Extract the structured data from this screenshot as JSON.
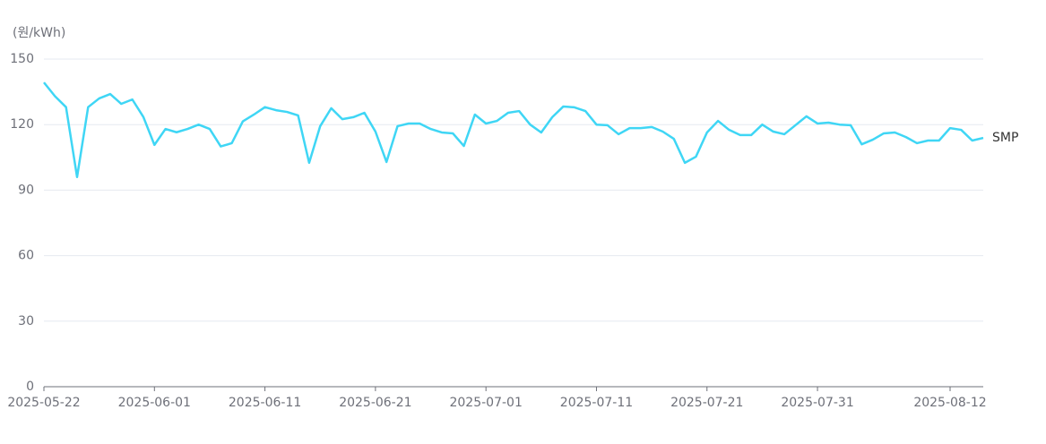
{
  "chart_data": {
    "type": "line",
    "y_axis_label": "(원/kWh)",
    "x": [
      "2025-05-22",
      "2025-05-23",
      "2025-05-24",
      "2025-05-25",
      "2025-05-26",
      "2025-05-27",
      "2025-05-28",
      "2025-05-29",
      "2025-05-30",
      "2025-05-31",
      "2025-06-01",
      "2025-06-02",
      "2025-06-03",
      "2025-06-04",
      "2025-06-05",
      "2025-06-06",
      "2025-06-07",
      "2025-06-08",
      "2025-06-09",
      "2025-06-10",
      "2025-06-11",
      "2025-06-12",
      "2025-06-13",
      "2025-06-14",
      "2025-06-15",
      "2025-06-16",
      "2025-06-17",
      "2025-06-18",
      "2025-06-19",
      "2025-06-20",
      "2025-06-21",
      "2025-06-22",
      "2025-06-23",
      "2025-06-24",
      "2025-06-25",
      "2025-06-26",
      "2025-06-27",
      "2025-06-28",
      "2025-06-29",
      "2025-06-30",
      "2025-07-01",
      "2025-07-02",
      "2025-07-03",
      "2025-07-04",
      "2025-07-05",
      "2025-07-06",
      "2025-07-07",
      "2025-07-08",
      "2025-07-09",
      "2025-07-10",
      "2025-07-11",
      "2025-07-12",
      "2025-07-13",
      "2025-07-14",
      "2025-07-15",
      "2025-07-16",
      "2025-07-17",
      "2025-07-18",
      "2025-07-19",
      "2025-07-20",
      "2025-07-21",
      "2025-07-22",
      "2025-07-23",
      "2025-07-24",
      "2025-07-25",
      "2025-07-26",
      "2025-07-27",
      "2025-07-28",
      "2025-07-29",
      "2025-07-30",
      "2025-07-31",
      "2025-08-01",
      "2025-08-02",
      "2025-08-03",
      "2025-08-04",
      "2025-08-05",
      "2025-08-06",
      "2025-08-07",
      "2025-08-08",
      "2025-08-09",
      "2025-08-10",
      "2025-08-11",
      "2025-08-12",
      "2025-08-13",
      "2025-08-14",
      "2025-08-15"
    ],
    "series": [
      {
        "name": "SMP",
        "color": "#3fd6f5",
        "values": [
          139.3,
          133,
          128,
          96,
          128,
          132,
          134,
          129.5,
          131.5,
          123.5,
          110.7,
          118,
          116.5,
          118,
          120,
          118,
          110,
          111.5,
          121.5,
          124.6,
          128,
          126.6,
          125.8,
          124.2,
          102.5,
          119.3,
          127.5,
          122.5,
          123.4,
          125.4,
          116.8,
          102.9,
          119.3,
          120.5,
          120.5,
          118,
          116.4,
          116,
          110.2,
          124.6,
          120.5,
          121.7,
          125.4,
          126.2,
          120,
          116.4,
          123.4,
          128.3,
          127.9,
          126.2,
          120,
          119.7,
          115.6,
          118.4,
          118.4,
          118.9,
          116.8,
          113.5,
          102.5,
          105.3,
          116.4,
          121.7,
          117.6,
          115.2,
          115.2,
          120,
          116.8,
          115.6,
          119.7,
          123.8,
          120.5,
          120.9,
          120,
          119.7,
          111,
          113.1,
          116,
          116.4,
          114.3,
          111.5,
          112.7,
          112.7,
          118.4,
          117.6,
          112.7,
          113.9
        ]
      }
    ],
    "xlim": [
      "2025-05-22",
      "2025-08-15"
    ],
    "xticks": [
      "2025-05-22",
      "2025-06-01",
      "2025-06-11",
      "2025-06-21",
      "2025-07-01",
      "2025-07-11",
      "2025-07-21",
      "2025-07-31",
      "2025-08-12"
    ],
    "ylim": [
      0,
      150
    ],
    "yticks": [
      0,
      30,
      60,
      90,
      120,
      150
    ],
    "grid": true
  }
}
